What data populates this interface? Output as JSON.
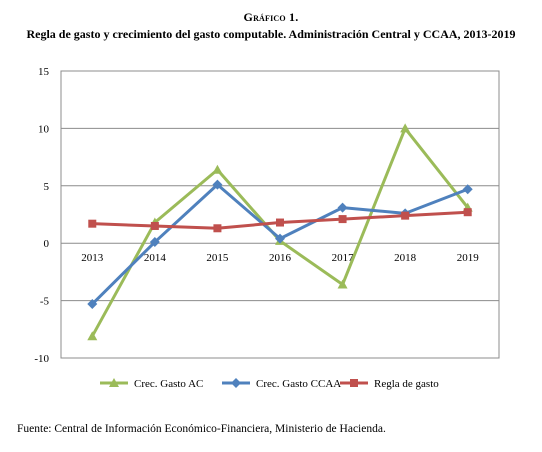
{
  "header": {
    "label": "Gráfico 1.",
    "title": "Regla de gasto y crecimiento del gasto computable. Administración Central y CCAA, 2013-2019"
  },
  "chart_data": {
    "type": "line",
    "categories": [
      "2013",
      "2014",
      "2015",
      "2016",
      "2017",
      "2018",
      "2019"
    ],
    "ylim": [
      -10,
      15
    ],
    "yticks": [
      -10,
      -5,
      0,
      5,
      10,
      15
    ],
    "grid": true,
    "legend_position": "bottom",
    "series": [
      {
        "name": "Crec. Gasto AC",
        "color": "#9bbb59",
        "marker": "triangle",
        "values": [
          -8.1,
          1.8,
          6.4,
          0.2,
          -3.6,
          10.0,
          3.1
        ]
      },
      {
        "name": "Crec. Gasto CCAA",
        "color": "#4f81bd",
        "marker": "diamond",
        "values": [
          -5.3,
          0.1,
          5.1,
          0.4,
          3.1,
          2.6,
          4.7
        ]
      },
      {
        "name": "Regla de gasto",
        "color": "#c0504d",
        "marker": "square",
        "values": [
          1.7,
          1.5,
          1.3,
          1.8,
          2.1,
          2.4,
          2.7
        ]
      }
    ]
  },
  "footer": {
    "source": "Fuente: Central de Información Económico-Financiera, Ministerio de Hacienda."
  }
}
